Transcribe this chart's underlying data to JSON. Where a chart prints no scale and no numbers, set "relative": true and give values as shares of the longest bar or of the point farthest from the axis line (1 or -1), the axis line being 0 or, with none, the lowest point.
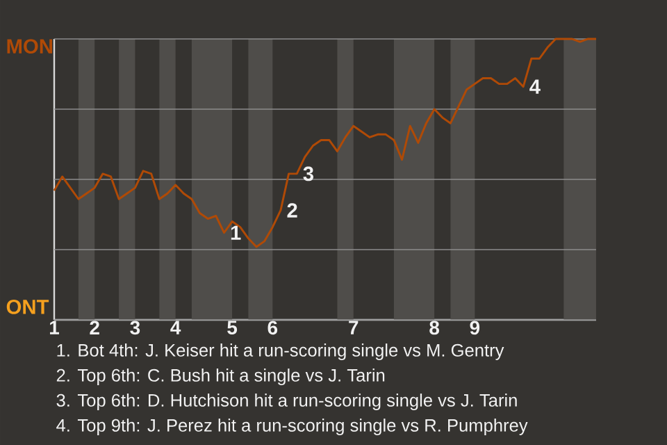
{
  "chart_data": {
    "type": "line",
    "relative": true,
    "categories": [
      "1",
      null,
      null,
      null,
      null,
      "2",
      null,
      null,
      null,
      null,
      "3",
      null,
      null,
      null,
      null,
      "4",
      null,
      null,
      null,
      null,
      null,
      null,
      "5",
      null,
      null,
      null,
      null,
      "6",
      null,
      null,
      null,
      null,
      null,
      null,
      null,
      null,
      null,
      "7",
      null,
      null,
      null,
      null,
      null,
      null,
      null,
      null,
      null,
      "8",
      null,
      null,
      null,
      null,
      "9",
      null,
      null,
      null,
      null,
      null,
      null,
      null,
      null,
      null,
      null,
      null,
      null,
      null,
      null,
      null
    ],
    "series": [
      {
        "color": "#b04a06",
        "values": [
          0.46,
          0.51,
          0.47,
          0.43,
          0.45,
          0.47,
          0.52,
          0.51,
          0.43,
          0.45,
          0.47,
          0.53,
          0.52,
          0.43,
          0.45,
          0.48,
          0.45,
          0.43,
          0.38,
          0.36,
          0.37,
          0.31,
          0.35,
          0.33,
          0.29,
          0.26,
          0.28,
          0.33,
          0.39,
          0.52,
          0.52,
          0.58,
          0.62,
          0.64,
          0.64,
          0.6,
          0.65,
          0.69,
          0.67,
          0.65,
          0.66,
          0.66,
          0.64,
          0.57,
          0.69,
          0.63,
          0.7,
          0.75,
          0.72,
          0.7,
          0.76,
          0.82,
          0.84,
          0.86,
          0.86,
          0.84,
          0.84,
          0.86,
          0.83,
          0.93,
          0.93,
          0.97,
          1.0,
          1.0,
          1.0,
          0.99,
          1.0,
          1.0
        ]
      }
    ],
    "ref_lines": [
      {
        "axis": "y",
        "value": 1,
        "label": "MON",
        "color": "#8c8c8c"
      },
      {
        "axis": "y",
        "value": 0.75,
        "color": "#8c8c8c"
      },
      {
        "axis": "y",
        "value": 0.5,
        "color": "#8c8c8c"
      },
      {
        "axis": "y",
        "value": 0.25,
        "color": "#8c8c8c"
      },
      {
        "axis": "y",
        "value": 0,
        "label": "ONT",
        "color": "#8c8c8c"
      }
    ],
    "annotations": [
      "1",
      "2",
      "3",
      "4",
      "1. Bot 4th: J. Keiser hit a run-scoring single vs M. Gentry",
      "2. Top 6th: C. Bush hit a single vs J. Tarin",
      "3. Top 6th: D. Hutchison hit a run-scoring single vs J. Tarin",
      "4. Top 9th: J. Perez hit a run-scoring single vs R. Pumphrey"
    ]
  }
}
